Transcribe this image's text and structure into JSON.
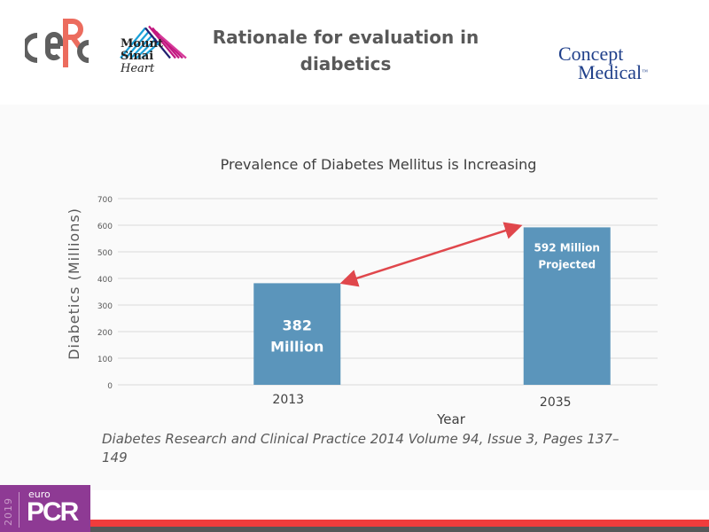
{
  "slide": {
    "title": "Rationale for evaluation in diabetics",
    "citation": "Diabetes Research and Clinical Practice 2014 Volume 94, Issue 3, Pages 137–149"
  },
  "logos": {
    "cerc": "CERC",
    "mount_sinai": {
      "line1": "Mount",
      "line2": "Sinai",
      "line3": "Heart"
    },
    "concept_medical": {
      "line1": "Concept",
      "line2": "Medical",
      "mark": "™"
    },
    "europcr": {
      "year": "2019",
      "euro": "euro",
      "pcr": "PCR"
    }
  },
  "colors": {
    "bar": "#5b95bb",
    "arrow": "#e0474c",
    "accent_red": "#f03c3c",
    "europcr_purple": "#8e3a94"
  },
  "chart_data": {
    "type": "bar",
    "title": "Prevalence of Diabetes Mellitus is Increasing",
    "xlabel": "Year",
    "ylabel": "Diabetics (Millions)",
    "categories": [
      "2013",
      "2035"
    ],
    "values": [
      382,
      592
    ],
    "data_labels": [
      [
        "382",
        "Million"
      ],
      [
        "592 Million",
        "Projected"
      ]
    ],
    "ylim": [
      0,
      700
    ],
    "yticks": [
      0,
      100,
      200,
      300,
      400,
      500,
      600,
      700
    ],
    "grid": true,
    "legend": "none",
    "annotations": [
      {
        "type": "double-arrow",
        "from": "2013",
        "to": "2035"
      }
    ]
  }
}
